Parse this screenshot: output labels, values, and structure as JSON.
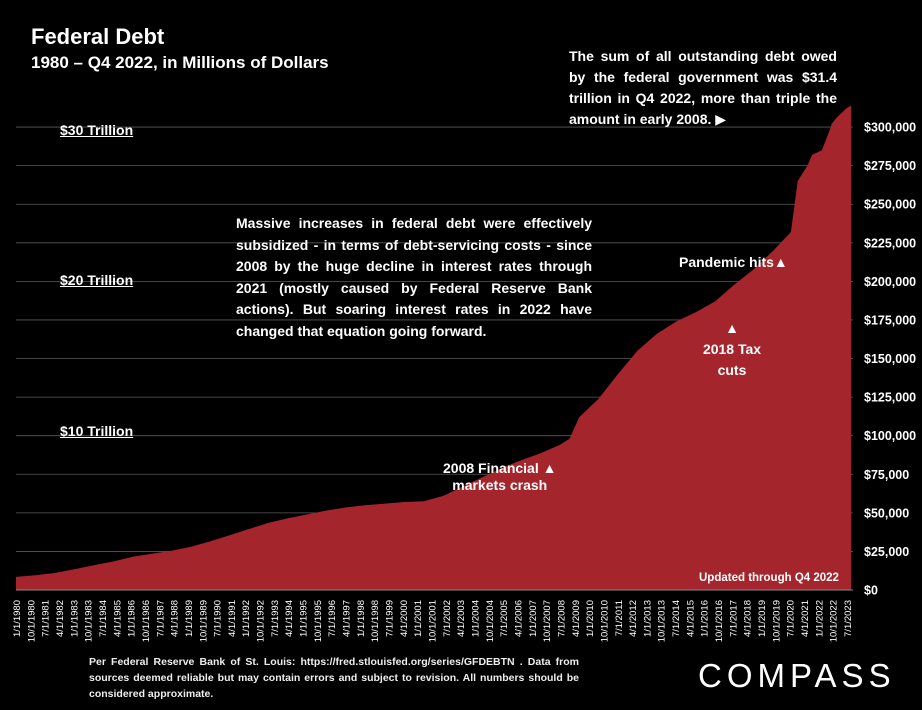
{
  "title": "Federal Debt",
  "subtitle": "1980 – Q4 2022, in Millions of Dollars",
  "annotations": {
    "top": "The sum of all outstanding debt owed by the federal government was $31.4 trillion in Q4 2022, more than triple the amount in early 2008.",
    "top_arrow": "▶",
    "middle": "Massive increases in federal debt were effectively subsidized  - in terms of debt-servicing costs - since 2008 by the huge decline in interest rates through 2021 (mostly caused by Federal Reserve Bank actions). But soaring interest rates in 2022 have changed that equation going forward.",
    "crash_line1": "2008 Financial",
    "crash_line2": "markets crash",
    "tax_line1": "2018 Tax",
    "tax_line2": "cuts",
    "pandemic": "Pandemic hits",
    "arrow_up": "▲"
  },
  "trillion_labels": [
    "$30 Trillion",
    "$20 Trillion",
    "$10 Trillion"
  ],
  "updated": "Updated through Q4 2022",
  "footer": "Per Federal Reserve Bank of St. Louis: https://fred.stlouisfed.org/series/GFDEBTN . Data from sources deemed reliable but may contain errors and subject to revision. All numbers should be considered approximate.",
  "brand": "COMPASS",
  "colors": {
    "fill": "#a4252c",
    "background": "#000000",
    "text": "#ffffff",
    "grid": "#5a5a5a"
  },
  "chart_data": {
    "type": "area",
    "title": "Federal Debt",
    "units": "Millions of Dollars",
    "ylim": [
      0,
      310000
    ],
    "y_ticks": [
      0,
      25000,
      50000,
      75000,
      100000,
      125000,
      150000,
      175000,
      200000,
      225000,
      250000,
      275000,
      300000
    ],
    "y_tick_labels": [
      "$0",
      "$25,000",
      "$50,000",
      "$75,000",
      "$100,000",
      "$125,000",
      "$150,000",
      "$175,000",
      "$200,000",
      "$225,000",
      "$250,000",
      "$275,000",
      "$300,000"
    ],
    "x_tick_labels": [
      "1/1/1980",
      "10/1/1980",
      "7/1/1981",
      "4/1/1982",
      "1/1/1983",
      "10/1/1983",
      "7/1/1984",
      "4/1/1985",
      "1/1/1986",
      "10/1/1986",
      "7/1/1987",
      "4/1/1988",
      "1/1/1989",
      "10/1/1989",
      "7/1/1990",
      "4/1/1991",
      "1/1/1992",
      "10/1/1992",
      "7/1/1993",
      "4/1/1994",
      "1/1/1995",
      "10/1/1995",
      "7/1/1996",
      "4/1/1997",
      "1/1/1998",
      "10/1/1998",
      "7/1/1999",
      "4/1/2000",
      "1/1/2001",
      "10/1/2001",
      "7/1/2002",
      "4/1/2003",
      "1/1/2004",
      "10/1/2004",
      "7/1/2005",
      "4/1/2006",
      "1/1/2007",
      "10/1/2007",
      "7/1/2008",
      "4/1/2009",
      "1/1/2010",
      "10/1/2010",
      "7/1/2011",
      "4/1/2012",
      "1/1/2013",
      "10/1/2013",
      "7/1/2014",
      "4/1/2015",
      "1/1/2016",
      "10/1/2016",
      "7/1/2017",
      "4/1/2018",
      "1/1/2019",
      "10/1/2019",
      "7/1/2020",
      "4/1/2021",
      "1/1/2022",
      "10/1/2022",
      "7/1/2023"
    ],
    "series": [
      {
        "name": "Federal Debt",
        "points": [
          [
            1980.0,
            8500
          ],
          [
            1981.0,
            9600
          ],
          [
            1982.0,
            11000
          ],
          [
            1983.0,
            13500
          ],
          [
            1984.0,
            16000
          ],
          [
            1985.0,
            18500
          ],
          [
            1986.0,
            21500
          ],
          [
            1987.0,
            23500
          ],
          [
            1988.0,
            25500
          ],
          [
            1989.0,
            28000
          ],
          [
            1990.0,
            31500
          ],
          [
            1991.0,
            35500
          ],
          [
            1992.0,
            39500
          ],
          [
            1993.0,
            43500
          ],
          [
            1994.0,
            46500
          ],
          [
            1995.0,
            49000
          ],
          [
            1996.0,
            51500
          ],
          [
            1997.0,
            53500
          ],
          [
            1998.0,
            55000
          ],
          [
            1999.0,
            56000
          ],
          [
            2000.0,
            57000
          ],
          [
            2001.0,
            57500
          ],
          [
            2002.0,
            61000
          ],
          [
            2003.0,
            67000
          ],
          [
            2004.0,
            73000
          ],
          [
            2005.0,
            79000
          ],
          [
            2006.0,
            84000
          ],
          [
            2007.0,
            88500
          ],
          [
            2008.0,
            94000
          ],
          [
            2008.5,
            98000
          ],
          [
            2009.0,
            112000
          ],
          [
            2010.0,
            124000
          ],
          [
            2011.0,
            140000
          ],
          [
            2012.0,
            155000
          ],
          [
            2013.0,
            166000
          ],
          [
            2014.0,
            174000
          ],
          [
            2015.0,
            180000
          ],
          [
            2016.0,
            187000
          ],
          [
            2017.0,
            198000
          ],
          [
            2018.0,
            208000
          ],
          [
            2019.0,
            220000
          ],
          [
            2019.9,
            232000
          ],
          [
            2020.25,
            265000
          ],
          [
            2020.75,
            275000
          ],
          [
            2021.0,
            282000
          ],
          [
            2021.5,
            285000
          ],
          [
            2021.9,
            298000
          ],
          [
            2022.0,
            302000
          ],
          [
            2022.25,
            306000
          ],
          [
            2022.75,
            312000
          ],
          [
            2023.0,
            314000
          ]
        ]
      }
    ]
  }
}
